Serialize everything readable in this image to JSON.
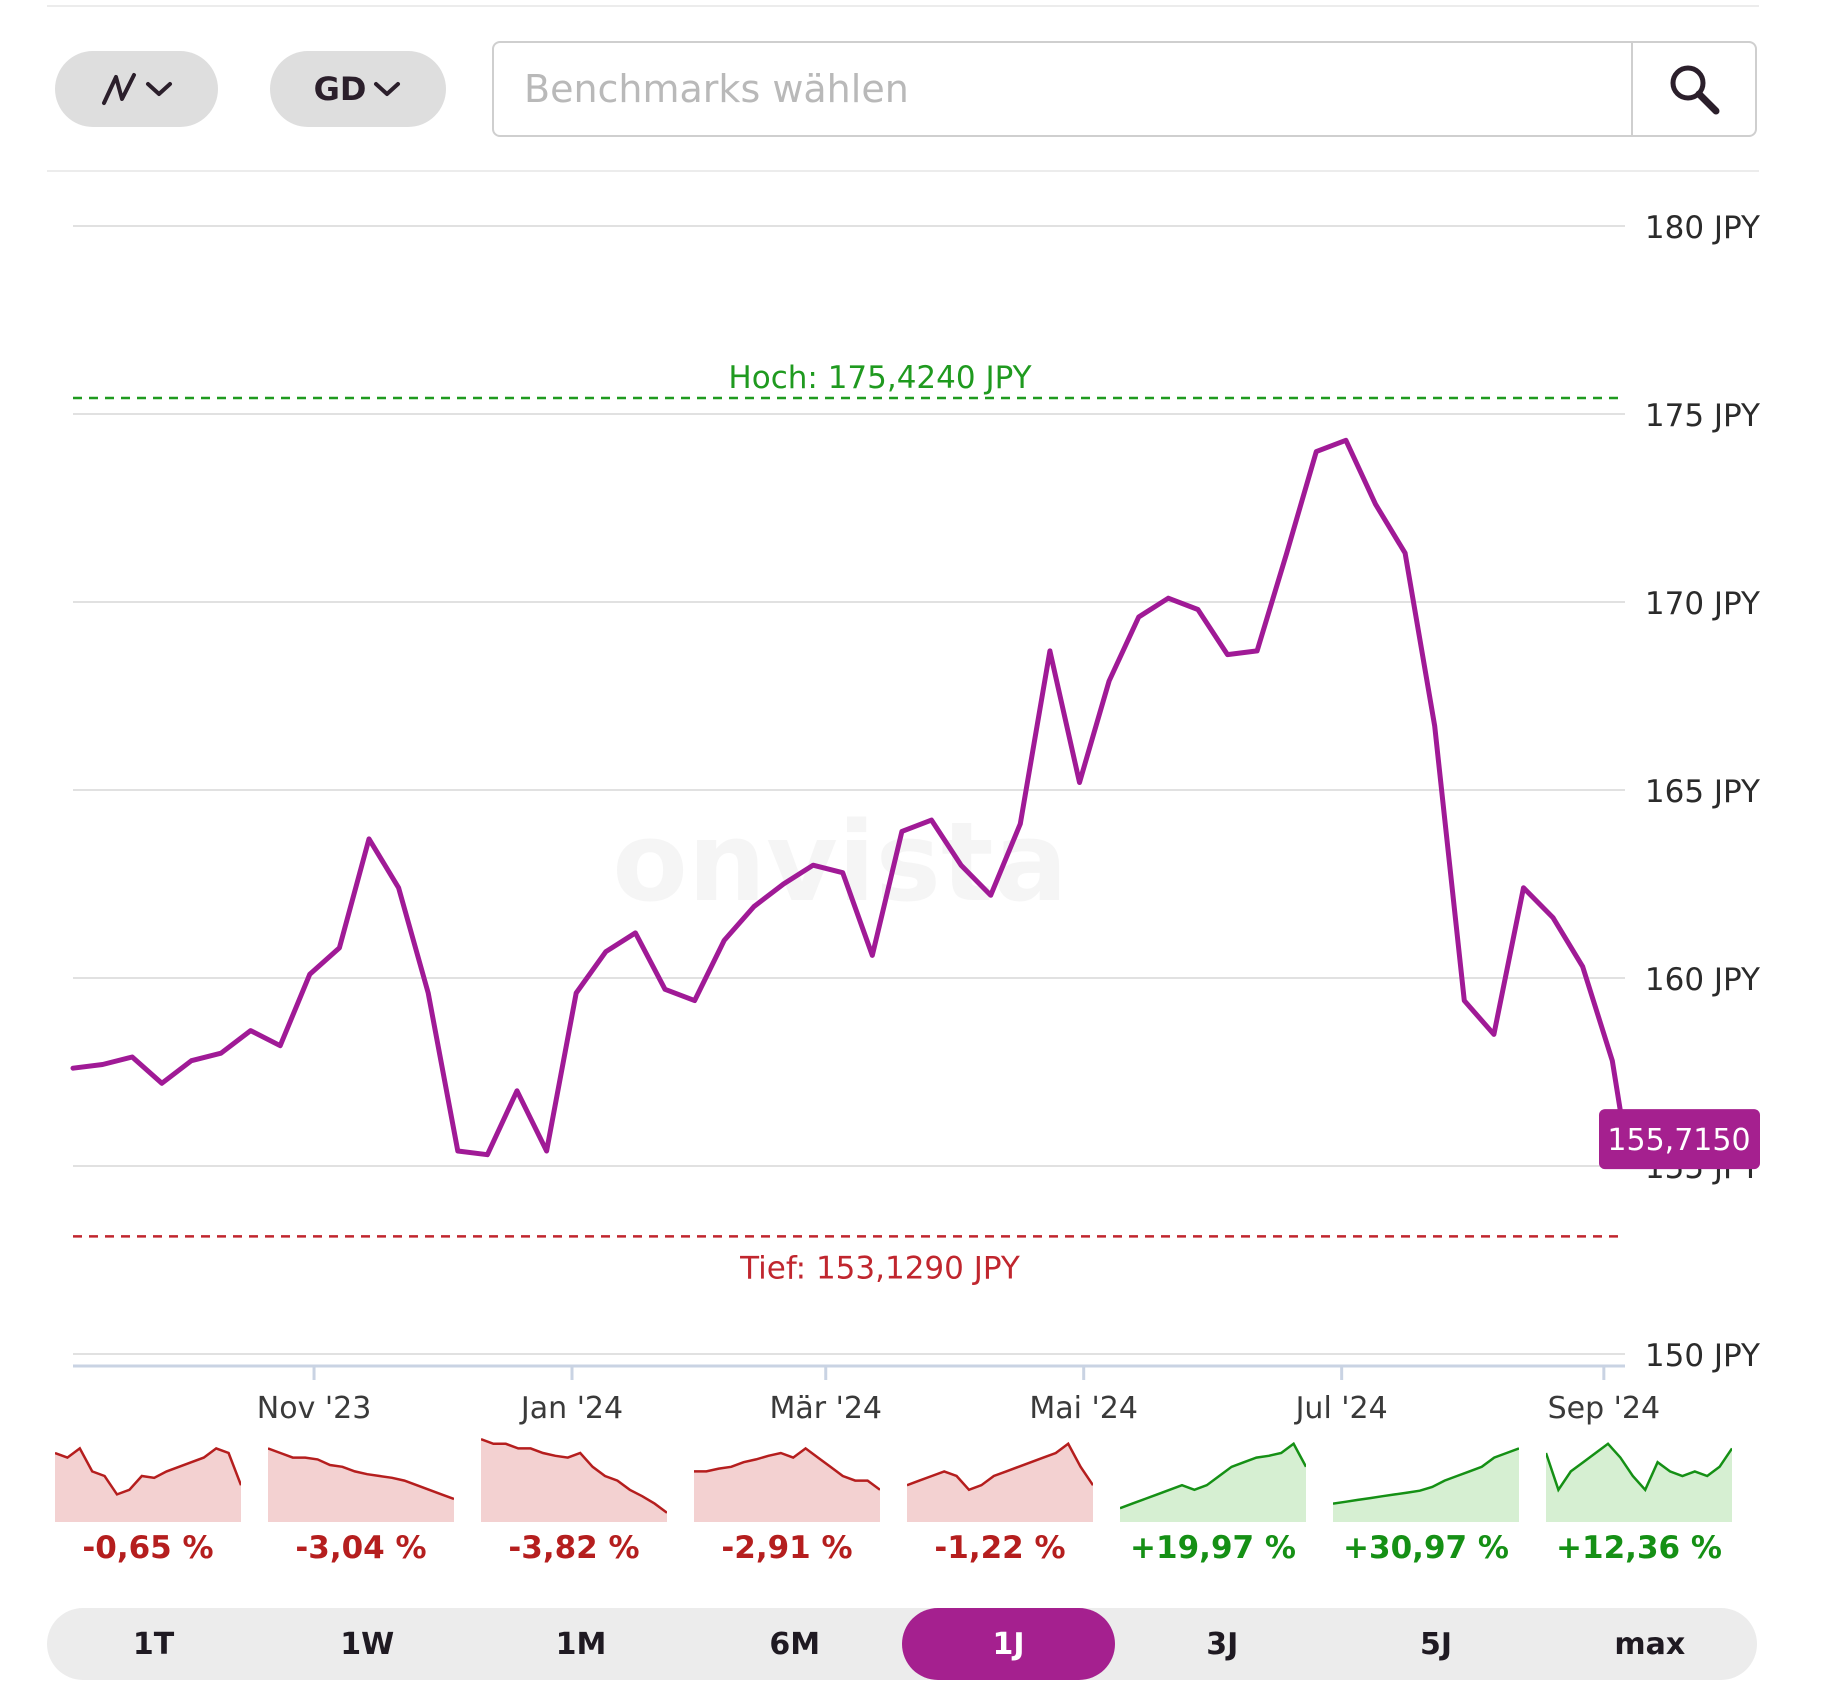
{
  "toolbar": {
    "chart_type_icon": "line-chart-icon",
    "gd_label": "GD",
    "search_placeholder": "Benchmarks wählen",
    "search_icon": "search-icon"
  },
  "colors": {
    "line": "#a01a96",
    "high": "#1f9a1f",
    "low": "#c0262e",
    "grid": "#e1e1e1",
    "positive": "#159015",
    "negative": "#b51e1e",
    "accent": "#a5208f"
  },
  "watermark": "onvista",
  "chart_data": {
    "type": "line",
    "currency": "JPY",
    "ylim": [
      150,
      180
    ],
    "y_ticks": [
      {
        "value": 180,
        "label": "180 JPY"
      },
      {
        "value": 175,
        "label": "175 JPY"
      },
      {
        "value": 170,
        "label": "170 JPY"
      },
      {
        "value": 165,
        "label": "165 JPY"
      },
      {
        "value": 160,
        "label": "160 JPY"
      },
      {
        "value": 155,
        "label": "155 JPY"
      },
      {
        "value": 150,
        "label": "150 JPY"
      }
    ],
    "x_range": [
      "2023-09-05",
      "2024-09-06"
    ],
    "x_ticks": [
      {
        "date": "2023-11-01",
        "label": "Nov '23"
      },
      {
        "date": "2024-01-01",
        "label": "Jan '24"
      },
      {
        "date": "2024-03-01",
        "label": "Mär '24"
      },
      {
        "date": "2024-05-01",
        "label": "Mai '24"
      },
      {
        "date": "2024-07-01",
        "label": "Jul '24"
      },
      {
        "date": "2024-09-01",
        "label": "Sep '24"
      }
    ],
    "high": {
      "value": 175.424,
      "label": "Hoch: 175,4240 JPY"
    },
    "low": {
      "value": 153.129,
      "label": "Tief: 153,1290 JPY"
    },
    "last": {
      "value": 155.715,
      "label": "155,7150"
    },
    "grid": true,
    "series": [
      {
        "x": [
          "2023-09-05",
          "2023-09-12",
          "2023-09-19",
          "2023-09-26",
          "2023-10-03",
          "2023-10-10",
          "2023-10-17",
          "2023-10-24",
          "2023-10-31",
          "2023-11-07",
          "2023-11-14",
          "2023-11-21",
          "2023-11-28",
          "2023-12-05",
          "2023-12-12",
          "2023-12-19",
          "2023-12-26",
          "2024-01-02",
          "2024-01-09",
          "2024-01-16",
          "2024-01-23",
          "2024-01-30",
          "2024-02-06",
          "2024-02-13",
          "2024-02-20",
          "2024-02-27",
          "2024-03-05",
          "2024-03-12",
          "2024-03-19",
          "2024-03-26",
          "2024-04-02",
          "2024-04-09",
          "2024-04-16",
          "2024-04-23",
          "2024-04-30",
          "2024-05-07",
          "2024-05-14",
          "2024-05-21",
          "2024-05-28",
          "2024-06-04",
          "2024-06-11",
          "2024-06-18",
          "2024-06-25",
          "2024-07-02",
          "2024-07-09",
          "2024-07-16",
          "2024-07-23",
          "2024-07-30",
          "2024-08-06",
          "2024-08-13",
          "2024-08-20",
          "2024-08-27",
          "2024-09-03",
          "2024-09-06"
        ],
        "y": [
          157.6,
          157.7,
          157.9,
          157.2,
          157.8,
          158.0,
          158.6,
          158.2,
          160.1,
          160.8,
          163.7,
          162.4,
          159.6,
          155.4,
          155.3,
          157.0,
          155.4,
          159.6,
          160.7,
          161.2,
          159.7,
          159.4,
          161.0,
          161.9,
          162.5,
          163.0,
          162.8,
          160.6,
          163.9,
          164.2,
          163.0,
          162.2,
          164.1,
          168.7,
          165.2,
          167.9,
          169.6,
          170.1,
          169.8,
          168.6,
          168.7,
          171.3,
          174.0,
          174.3,
          172.6,
          171.3,
          166.7,
          159.4,
          158.5,
          162.4,
          161.6,
          160.3,
          157.8,
          155.7
        ]
      }
    ]
  },
  "performance": [
    {
      "label": "-0,65 %",
      "sign": "negative",
      "values": [
        0.75,
        0.7,
        0.8,
        0.55,
        0.5,
        0.3,
        0.35,
        0.5,
        0.48,
        0.55,
        0.6,
        0.65,
        0.7,
        0.8,
        0.75,
        0.4
      ]
    },
    {
      "label": "-3,04 %",
      "sign": "negative",
      "values": [
        0.8,
        0.75,
        0.7,
        0.7,
        0.68,
        0.62,
        0.6,
        0.55,
        0.52,
        0.5,
        0.48,
        0.45,
        0.4,
        0.35,
        0.3,
        0.25
      ]
    },
    {
      "label": "-3,82 %",
      "sign": "negative",
      "values": [
        0.9,
        0.85,
        0.85,
        0.8,
        0.8,
        0.75,
        0.72,
        0.7,
        0.75,
        0.6,
        0.5,
        0.45,
        0.35,
        0.28,
        0.2,
        0.1
      ]
    },
    {
      "label": "-2,91 %",
      "sign": "negative",
      "values": [
        0.55,
        0.55,
        0.58,
        0.6,
        0.65,
        0.68,
        0.72,
        0.75,
        0.7,
        0.8,
        0.7,
        0.6,
        0.5,
        0.45,
        0.45,
        0.35
      ]
    },
    {
      "label": "-1,22 %",
      "sign": "negative",
      "values": [
        0.4,
        0.45,
        0.5,
        0.55,
        0.5,
        0.35,
        0.4,
        0.5,
        0.55,
        0.6,
        0.65,
        0.7,
        0.75,
        0.85,
        0.6,
        0.4
      ]
    },
    {
      "label": "+19,97 %",
      "sign": "positive",
      "values": [
        0.15,
        0.2,
        0.25,
        0.3,
        0.35,
        0.4,
        0.35,
        0.4,
        0.5,
        0.6,
        0.65,
        0.7,
        0.72,
        0.75,
        0.85,
        0.6
      ]
    },
    {
      "label": "+30,97 %",
      "sign": "positive",
      "values": [
        0.2,
        0.22,
        0.24,
        0.26,
        0.28,
        0.3,
        0.32,
        0.34,
        0.38,
        0.45,
        0.5,
        0.55,
        0.6,
        0.7,
        0.75,
        0.8
      ]
    },
    {
      "label": "+12,36 %",
      "sign": "positive",
      "values": [
        0.75,
        0.35,
        0.55,
        0.65,
        0.75,
        0.85,
        0.7,
        0.5,
        0.35,
        0.65,
        0.55,
        0.5,
        0.55,
        0.5,
        0.6,
        0.8
      ]
    }
  ],
  "ranges": [
    {
      "label": "1T",
      "active": false
    },
    {
      "label": "1W",
      "active": false
    },
    {
      "label": "1M",
      "active": false
    },
    {
      "label": "6M",
      "active": false
    },
    {
      "label": "1J",
      "active": true
    },
    {
      "label": "3J",
      "active": false
    },
    {
      "label": "5J",
      "active": false
    },
    {
      "label": "max",
      "active": false
    }
  ]
}
